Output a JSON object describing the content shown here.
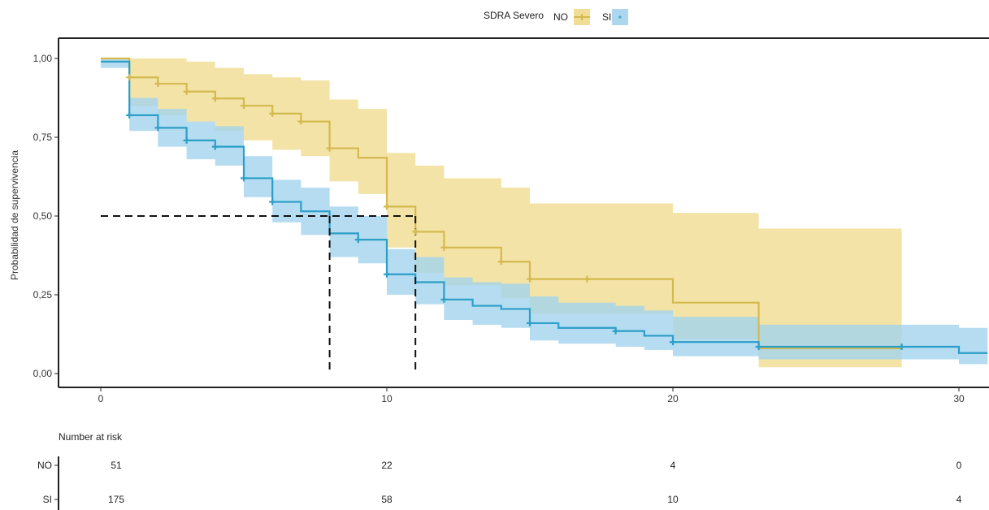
{
  "chart_data": {
    "type": "line",
    "subtype": "kaplan-meier",
    "title": "",
    "xlabel": "",
    "ylabel": "Probabilidad de supervivencia",
    "xlim": [
      -1.5,
      31
    ],
    "ylim": [
      -0.05,
      1.05
    ],
    "x_ticks": [
      0,
      10,
      20,
      30
    ],
    "x_tick_labels": [
      "0",
      "10",
      "20",
      "30"
    ],
    "y_ticks": [
      0,
      0.25,
      0.5,
      0.75,
      1.0
    ],
    "y_tick_labels": [
      "0,00",
      "0,25",
      "0,50",
      "0,75",
      "1,00"
    ],
    "grid": false,
    "legend": {
      "title": "SDRA Severo",
      "placement": "top-center",
      "entries": [
        "NO",
        "SI"
      ]
    },
    "series": [
      {
        "name": "NO",
        "color": "#d4b94e",
        "fill": "#efd98a",
        "steps": [
          [
            0,
            1.0
          ],
          [
            1,
            0.94
          ],
          [
            2,
            0.92
          ],
          [
            3,
            0.895
          ],
          [
            4,
            0.873
          ],
          [
            5,
            0.85
          ],
          [
            6,
            0.825
          ],
          [
            7,
            0.8
          ],
          [
            8,
            0.715
          ],
          [
            9,
            0.685
          ],
          [
            10,
            0.53
          ],
          [
            11,
            0.45
          ],
          [
            12,
            0.4
          ],
          [
            14,
            0.355
          ],
          [
            15,
            0.3
          ],
          [
            20,
            0.225
          ],
          [
            23,
            0.08
          ],
          [
            28,
            0.08
          ]
        ],
        "ci_lower": [
          [
            0,
            1.0
          ],
          [
            1,
            0.85
          ],
          [
            2,
            0.82
          ],
          [
            3,
            0.8
          ],
          [
            4,
            0.77
          ],
          [
            5,
            0.74
          ],
          [
            6,
            0.71
          ],
          [
            7,
            0.69
          ],
          [
            8,
            0.61
          ],
          [
            9,
            0.57
          ],
          [
            10,
            0.4
          ],
          [
            11,
            0.32
          ],
          [
            12,
            0.28
          ],
          [
            14,
            0.24
          ],
          [
            15,
            0.19
          ],
          [
            20,
            0.11
          ],
          [
            23,
            0.02
          ],
          [
            28,
            0.0
          ]
        ],
        "ci_upper": [
          [
            0,
            1.0
          ],
          [
            1,
            1.0
          ],
          [
            2,
            1.0
          ],
          [
            3,
            0.99
          ],
          [
            4,
            0.97
          ],
          [
            5,
            0.95
          ],
          [
            6,
            0.94
          ],
          [
            7,
            0.93
          ],
          [
            8,
            0.87
          ],
          [
            9,
            0.84
          ],
          [
            10,
            0.7
          ],
          [
            11,
            0.66
          ],
          [
            12,
            0.62
          ],
          [
            14,
            0.59
          ],
          [
            15,
            0.54
          ],
          [
            20,
            0.51
          ],
          [
            23,
            0.46
          ],
          [
            28,
            0.46
          ]
        ],
        "end_x": 28,
        "censor_marks": [
          1,
          2,
          3,
          4,
          5,
          6,
          7,
          8,
          10,
          11,
          12,
          14,
          15,
          17
        ]
      },
      {
        "name": "SI",
        "color": "#2b9ec9",
        "fill": "#a3d3ec",
        "steps": [
          [
            0,
            0.99
          ],
          [
            1,
            0.82
          ],
          [
            2,
            0.78
          ],
          [
            3,
            0.74
          ],
          [
            4,
            0.72
          ],
          [
            5,
            0.62
          ],
          [
            6,
            0.545
          ],
          [
            7,
            0.515
          ],
          [
            8,
            0.445
          ],
          [
            9,
            0.425
          ],
          [
            10,
            0.315
          ],
          [
            11,
            0.29
          ],
          [
            12,
            0.235
          ],
          [
            13,
            0.215
          ],
          [
            14,
            0.205
          ],
          [
            15,
            0.16
          ],
          [
            16,
            0.145
          ],
          [
            18,
            0.135
          ],
          [
            19,
            0.12
          ],
          [
            20,
            0.1
          ],
          [
            23,
            0.085
          ],
          [
            30,
            0.065
          ]
        ],
        "ci_lower": [
          [
            0,
            0.97
          ],
          [
            1,
            0.77
          ],
          [
            2,
            0.72
          ],
          [
            3,
            0.68
          ],
          [
            4,
            0.66
          ],
          [
            5,
            0.56
          ],
          [
            6,
            0.48
          ],
          [
            7,
            0.44
          ],
          [
            8,
            0.37
          ],
          [
            9,
            0.35
          ],
          [
            10,
            0.25
          ],
          [
            11,
            0.22
          ],
          [
            12,
            0.17
          ],
          [
            13,
            0.155
          ],
          [
            14,
            0.145
          ],
          [
            15,
            0.105
          ],
          [
            16,
            0.095
          ],
          [
            18,
            0.085
          ],
          [
            19,
            0.075
          ],
          [
            20,
            0.055
          ],
          [
            23,
            0.045
          ],
          [
            30,
            0.03
          ]
        ],
        "ci_upper": [
          [
            0,
            1.0
          ],
          [
            1,
            0.875
          ],
          [
            2,
            0.84
          ],
          [
            3,
            0.8
          ],
          [
            4,
            0.785
          ],
          [
            5,
            0.69
          ],
          [
            6,
            0.615
          ],
          [
            7,
            0.59
          ],
          [
            8,
            0.53
          ],
          [
            9,
            0.5
          ],
          [
            10,
            0.395
          ],
          [
            11,
            0.37
          ],
          [
            12,
            0.305
          ],
          [
            13,
            0.29
          ],
          [
            14,
            0.285
          ],
          [
            15,
            0.245
          ],
          [
            16,
            0.225
          ],
          [
            18,
            0.215
          ],
          [
            19,
            0.2
          ],
          [
            20,
            0.18
          ],
          [
            23,
            0.155
          ],
          [
            30,
            0.145
          ]
        ],
        "end_x": 31,
        "censor_marks": [
          1,
          2,
          3,
          4,
          5,
          6,
          9,
          10,
          12,
          15,
          18,
          20,
          23,
          28
        ]
      }
    ],
    "median_lines": [
      {
        "series": "SI",
        "x": 8,
        "y": 0.5
      },
      {
        "series": "NO",
        "x": 11,
        "y": 0.5
      }
    ],
    "risk_table": {
      "title": "Number at risk",
      "times": [
        0,
        10,
        20,
        30
      ],
      "rows": [
        {
          "name": "NO",
          "values": [
            "51",
            "22",
            "4",
            "0"
          ]
        },
        {
          "name": "SI",
          "values": [
            "175",
            "58",
            "10",
            "4"
          ]
        }
      ]
    }
  }
}
